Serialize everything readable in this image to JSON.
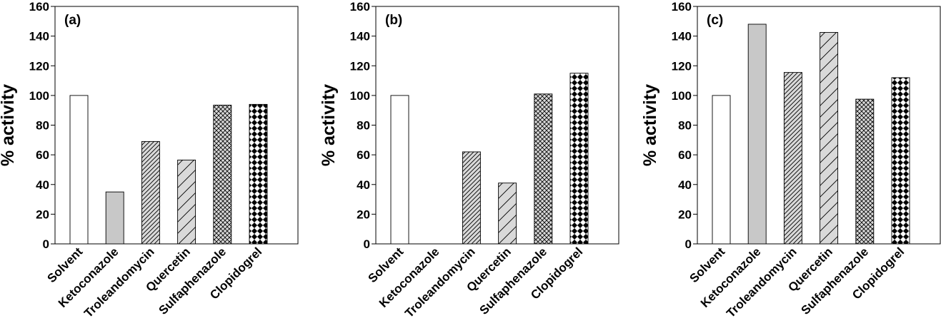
{
  "colors": {
    "axis": "#000000",
    "gray_fill": "#c8c8c8",
    "light_fill": "#d9d9d9"
  },
  "bar_styles": [
    "white",
    "solid-gray",
    "dense-diagonal",
    "sparse-diagonal",
    "crosshatch",
    "checker"
  ],
  "chart_data": [
    {
      "type": "bar",
      "panel_label": "(a)",
      "ylabel": "% activity",
      "ylim": [
        0,
        160
      ],
      "yticks": [
        0,
        20,
        40,
        60,
        80,
        100,
        120,
        140,
        160
      ],
      "categories": [
        "Solvent",
        "Ketoconazole",
        "Troleandomycin",
        "Quercetin",
        "Sulfaphenazole",
        "Clopidogrel"
      ],
      "values": [
        100,
        35,
        69,
        56.5,
        93.5,
        94
      ]
    },
    {
      "type": "bar",
      "panel_label": "(b)",
      "ylabel": "% activity",
      "ylim": [
        0,
        160
      ],
      "yticks": [
        0,
        20,
        40,
        60,
        80,
        100,
        120,
        140,
        160
      ],
      "categories": [
        "Solvent",
        "Ketoconazole",
        "Troleandomycin",
        "Quercetin",
        "Sulfaphenazole",
        "Clopidogrel"
      ],
      "values": [
        100,
        0,
        62,
        41,
        101,
        115
      ]
    },
    {
      "type": "bar",
      "panel_label": "(c)",
      "ylabel": "% activity",
      "ylim": [
        0,
        160
      ],
      "yticks": [
        0,
        20,
        40,
        60,
        80,
        100,
        120,
        140,
        160
      ],
      "categories": [
        "Solvent",
        "Ketoconazole",
        "Troleandomycin",
        "Quercetin",
        "Sulfaphenazole",
        "Clopidogrel"
      ],
      "values": [
        100,
        148,
        115.5,
        142.5,
        97.5,
        112
      ]
    }
  ]
}
